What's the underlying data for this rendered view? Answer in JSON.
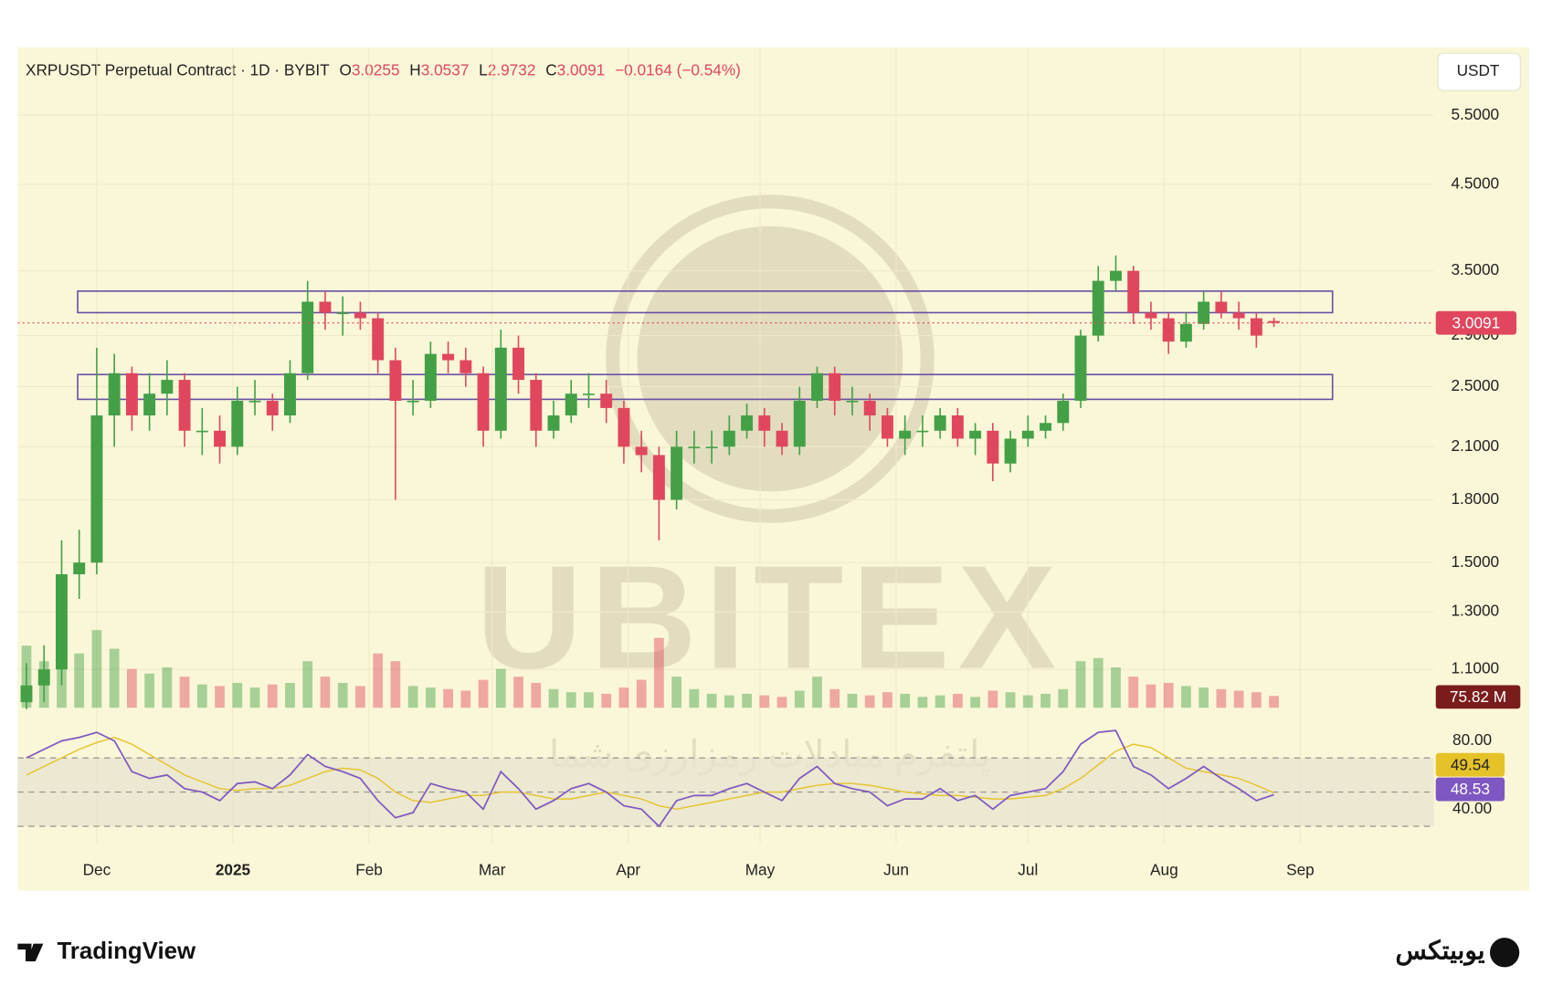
{
  "chart_data": {
    "type": "candlestick",
    "title": "XRPUSDT Perpetual Contract · 1D · BYBIT",
    "ohlc": [
      {
        "label": "O",
        "value": 3.0255
      },
      {
        "label": "H",
        "value": 3.0537
      },
      {
        "label": "L",
        "value": 2.9732
      },
      {
        "label": "C",
        "value": 3.0091
      }
    ],
    "change": "−0.0164 (−0.54%)",
    "currency": "USDT",
    "log_scale": true,
    "grid": true,
    "up_color": "#43a047",
    "down_color": "#e0475f",
    "ylim": [
      0.984,
      6.7
    ],
    "yticks": [
      {
        "value": 5.5,
        "label": "5.5000"
      },
      {
        "value": 4.5,
        "label": "4.5000"
      },
      {
        "value": 3.5,
        "label": "3.5000"
      },
      {
        "value": 2.9,
        "label": "2.9000"
      },
      {
        "value": 2.5,
        "label": "2.5000"
      },
      {
        "value": 2.1,
        "label": "2.1000"
      },
      {
        "value": 1.8,
        "label": "1.8000"
      },
      {
        "value": 1.5,
        "label": "1.5000"
      },
      {
        "value": 1.3,
        "label": "1.3000"
      },
      {
        "value": 1.1,
        "label": "1.1000"
      }
    ],
    "xlim": [
      -0.5,
      80.1
    ],
    "xticks": [
      {
        "value": 4,
        "label": "Dec"
      },
      {
        "value": 11.75,
        "label": "2025"
      },
      {
        "value": 19.5,
        "label": "Feb"
      },
      {
        "value": 26.5,
        "label": "Mar"
      },
      {
        "value": 34.25,
        "label": "Apr"
      },
      {
        "value": 41.75,
        "label": "May"
      },
      {
        "value": 49.5,
        "label": "Jun"
      },
      {
        "value": 57,
        "label": "Jul"
      },
      {
        "value": 64.75,
        "label": "Aug"
      },
      {
        "value": 72.5,
        "label": "Sep"
      }
    ],
    "last_price": {
      "value": 3.0091,
      "label": "3.0091",
      "color": "#e0475f"
    },
    "zones": [
      {
        "low": 3.1,
        "high": 3.3
      },
      {
        "low": 2.41,
        "high": 2.59
      }
    ],
    "zone_color": "#6a4fa3",
    "open": [
      1.0,
      1.05,
      1.1,
      1.45,
      1.5,
      2.3,
      2.6,
      2.3,
      2.45,
      2.55,
      2.2,
      2.2,
      2.1,
      2.4,
      2.4,
      2.3,
      2.6,
      3.2,
      3.1,
      3.1,
      3.05,
      2.7,
      2.4,
      2.4,
      2.75,
      2.7,
      2.6,
      2.2,
      2.8,
      2.55,
      2.2,
      2.3,
      2.45,
      2.45,
      2.35,
      2.1,
      2.05,
      1.8,
      2.1,
      2.1,
      2.1,
      2.2,
      2.3,
      2.2,
      2.1,
      2.4,
      2.6,
      2.4,
      2.4,
      2.3,
      2.15,
      2.2,
      2.2,
      2.3,
      2.15,
      2.2,
      2.0,
      2.15,
      2.2,
      2.25,
      2.4,
      2.9,
      3.4,
      3.5,
      3.1,
      3.05,
      2.85,
      3.0,
      3.2,
      3.1,
      3.05,
      3.0255
    ],
    "high": [
      1.12,
      1.18,
      1.6,
      1.65,
      2.8,
      2.75,
      2.65,
      2.6,
      2.7,
      2.6,
      2.35,
      2.3,
      2.5,
      2.55,
      2.45,
      2.7,
      3.4,
      3.3,
      3.25,
      3.2,
      3.1,
      2.8,
      2.55,
      2.85,
      2.85,
      2.8,
      2.65,
      2.95,
      2.9,
      2.6,
      2.4,
      2.55,
      2.6,
      2.55,
      2.4,
      2.2,
      2.1,
      2.2,
      2.2,
      2.2,
      2.3,
      2.38,
      2.35,
      2.25,
      2.5,
      2.65,
      2.65,
      2.5,
      2.45,
      2.35,
      2.3,
      2.3,
      2.35,
      2.35,
      2.25,
      2.25,
      2.2,
      2.3,
      2.3,
      2.45,
      2.95,
      3.55,
      3.66,
      3.55,
      3.2,
      3.1,
      3.1,
      3.3,
      3.3,
      3.2,
      3.1,
      3.0537
    ],
    "low": [
      0.98,
      1.0,
      1.05,
      1.35,
      1.45,
      2.1,
      2.2,
      2.2,
      2.3,
      2.1,
      2.05,
      2.0,
      2.05,
      2.3,
      2.2,
      2.25,
      2.55,
      2.95,
      2.9,
      2.95,
      2.6,
      1.8,
      2.3,
      2.35,
      2.6,
      2.5,
      2.1,
      2.15,
      2.45,
      2.1,
      2.15,
      2.25,
      2.35,
      2.25,
      2.0,
      1.95,
      1.6,
      1.75,
      2.0,
      2.0,
      2.05,
      2.15,
      2.1,
      2.05,
      2.05,
      2.35,
      2.3,
      2.3,
      2.2,
      2.1,
      2.05,
      2.1,
      2.15,
      2.1,
      2.05,
      1.9,
      1.95,
      2.1,
      2.15,
      2.2,
      2.35,
      2.85,
      3.3,
      3.0,
      2.95,
      2.75,
      2.8,
      2.95,
      3.05,
      2.95,
      2.8,
      2.9732
    ],
    "close": [
      1.05,
      1.1,
      1.45,
      1.5,
      2.3,
      2.6,
      2.3,
      2.45,
      2.55,
      2.2,
      2.2,
      2.1,
      2.4,
      2.4,
      2.3,
      2.6,
      3.2,
      3.1,
      3.1,
      3.05,
      2.7,
      2.4,
      2.4,
      2.75,
      2.7,
      2.6,
      2.2,
      2.8,
      2.55,
      2.2,
      2.3,
      2.45,
      2.45,
      2.35,
      2.1,
      2.05,
      1.8,
      2.1,
      2.1,
      2.1,
      2.2,
      2.3,
      2.2,
      2.1,
      2.4,
      2.6,
      2.4,
      2.4,
      2.3,
      2.15,
      2.2,
      2.2,
      2.3,
      2.15,
      2.2,
      2.0,
      2.15,
      2.2,
      2.25,
      2.4,
      2.9,
      3.4,
      3.5,
      3.1,
      3.05,
      2.85,
      3.0,
      3.2,
      3.1,
      3.05,
      2.9,
      3.0091
    ],
    "volume": {
      "vlim": [
        0,
        1000
      ],
      "values": [
        400,
        300,
        450,
        350,
        500,
        380,
        250,
        220,
        260,
        200,
        150,
        140,
        160,
        130,
        150,
        160,
        300,
        200,
        160,
        140,
        350,
        300,
        140,
        130,
        120,
        110,
        180,
        250,
        200,
        160,
        120,
        100,
        100,
        90,
        130,
        180,
        450,
        200,
        120,
        90,
        80,
        90,
        80,
        70,
        110,
        200,
        120,
        90,
        80,
        100,
        90,
        70,
        80,
        90,
        70,
        110,
        100,
        80,
        90,
        120,
        300,
        320,
        260,
        200,
        150,
        160,
        140,
        130,
        120,
        110,
        100,
        75.82
      ],
      "last_label": "75.82 M",
      "label_color": "#7b1c1c"
    },
    "rsi": {
      "ylim": [
        20,
        89
      ],
      "yticks": [
        {
          "value": 80,
          "label": "80.00"
        },
        {
          "value": 40,
          "label": "40.00"
        }
      ],
      "levels": [
        70,
        50,
        30
      ],
      "series": [
        {
          "color": "#7e57c2",
          "values": [
            70,
            75,
            80,
            82,
            85,
            80,
            62,
            58,
            60,
            52,
            50,
            45,
            55,
            56,
            52,
            60,
            72,
            65,
            62,
            58,
            45,
            35,
            38,
            55,
            52,
            50,
            40,
            62,
            52,
            40,
            45,
            52,
            55,
            50,
            42,
            40,
            30,
            45,
            48,
            48,
            52,
            55,
            50,
            45,
            58,
            65,
            55,
            52,
            50,
            42,
            46,
            46,
            52,
            45,
            48,
            40,
            48,
            50,
            52,
            62,
            78,
            85,
            86,
            65,
            60,
            52,
            58,
            65,
            58,
            52,
            45,
            48.53
          ],
          "last_label": "48.53"
        },
        {
          "color": "#e6c229",
          "values": [
            60,
            65,
            70,
            75,
            79,
            82,
            78,
            72,
            66,
            60,
            56,
            52,
            51,
            52,
            52,
            54,
            58,
            62,
            64,
            63,
            58,
            50,
            45,
            44,
            46,
            48,
            48,
            50,
            50,
            48,
            46,
            46,
            48,
            50,
            48,
            46,
            42,
            40,
            42,
            44,
            46,
            48,
            50,
            50,
            52,
            54,
            55,
            55,
            54,
            52,
            50,
            49,
            48,
            48,
            47,
            46,
            46,
            47,
            48,
            52,
            58,
            66,
            74,
            78,
            76,
            70,
            64,
            62,
            60,
            58,
            54,
            49.54
          ],
          "last_label": "49.54"
        }
      ]
    }
  },
  "watermark": {
    "brand": "UBITEX",
    "tagline": "پلتفرم مبادلات رمزارزی شما"
  },
  "footer": {
    "left": "TradingView",
    "right": "یوبیتکس"
  }
}
